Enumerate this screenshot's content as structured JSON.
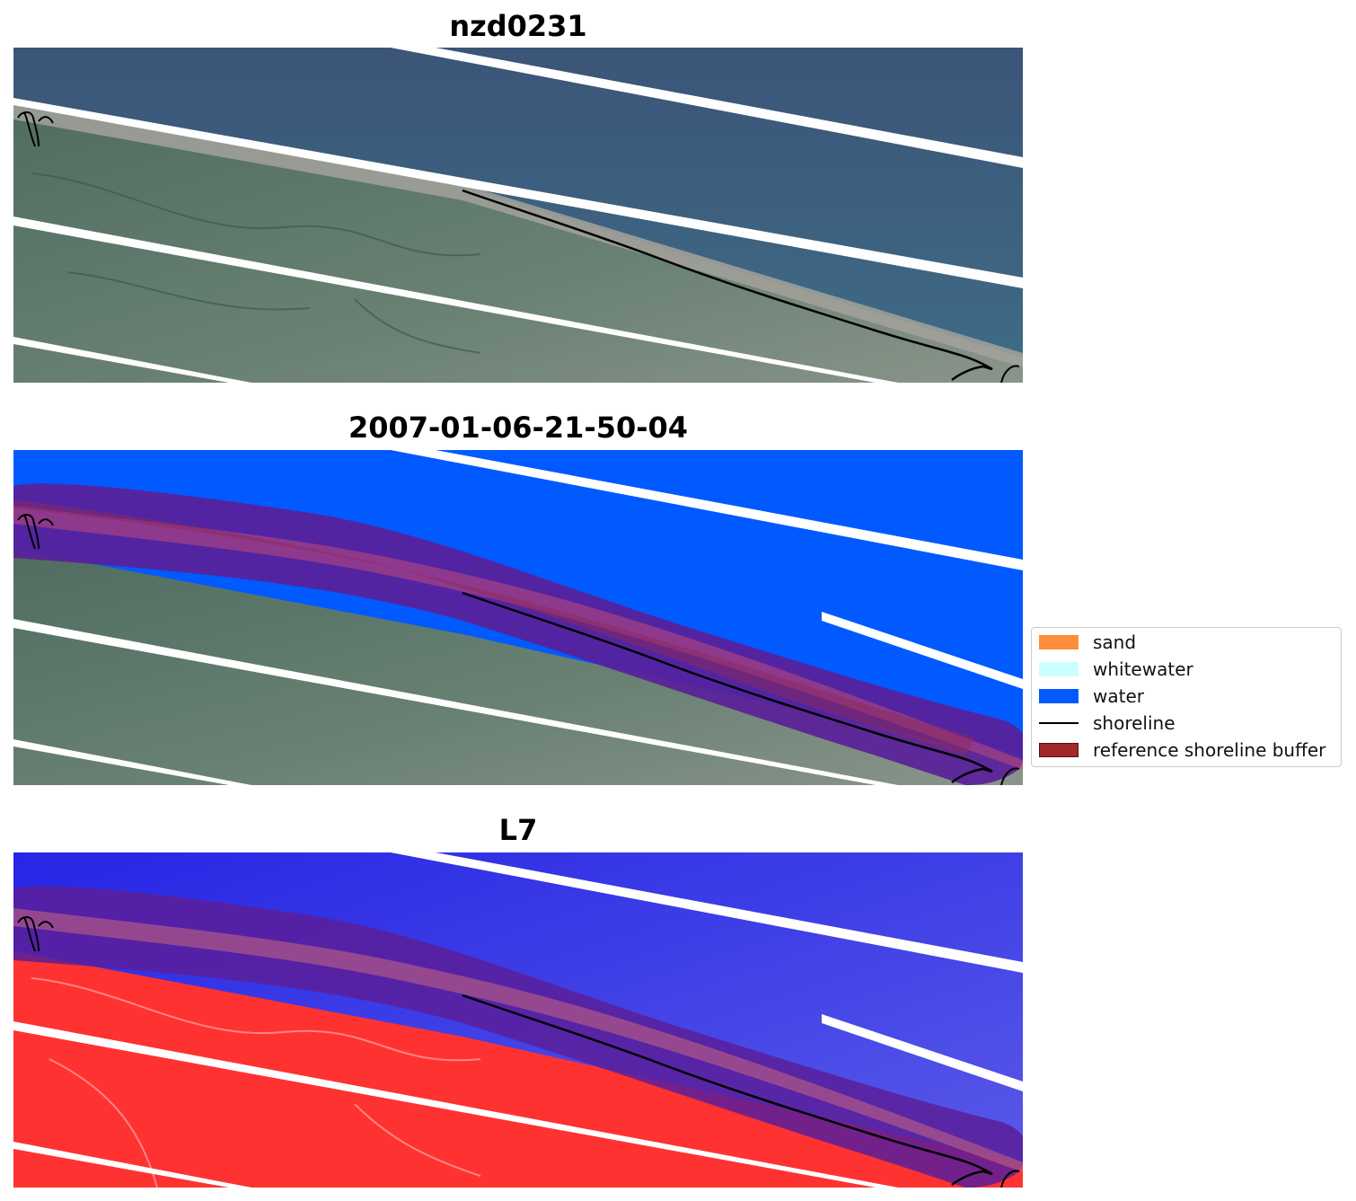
{
  "panels": [
    {
      "title": "nzd0231"
    },
    {
      "title": "2007-01-06-21-50-04"
    },
    {
      "title": "L7"
    }
  ],
  "legend": {
    "items": [
      {
        "label": "sand",
        "color": "#ff8c3a",
        "kind": "patch"
      },
      {
        "label": "whitewater",
        "color": "#ccffff",
        "kind": "patch"
      },
      {
        "label": "water",
        "color": "#005aff",
        "kind": "patch"
      },
      {
        "label": "shoreline",
        "color": "#000000",
        "kind": "line"
      },
      {
        "label": "reference shoreline buffer",
        "color": "#a02828",
        "kind": "patch"
      }
    ]
  },
  "colors": {
    "ocean_rgb": "#3a5a7c",
    "land_rgb": "#5e7a6a",
    "beach": "#a8a49c",
    "water_class": "#005aff",
    "buffer": "#8b1a3a",
    "ndwi_water": "#2a2ae8",
    "ndwi_land": "#ff3030"
  }
}
